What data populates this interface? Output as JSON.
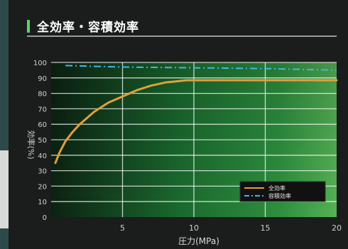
{
  "header": {
    "title": "全効率・容積効率"
  },
  "chart_data": {
    "type": "line",
    "xlabel": "圧力(MPa)",
    "ylabel": "効率(%)",
    "xlim": [
      0,
      20
    ],
    "ylim": [
      0,
      100
    ],
    "x_ticks": [
      "5",
      "10",
      "15",
      "20"
    ],
    "y_ticks": [
      "0",
      "10",
      "20",
      "30",
      "40",
      "50",
      "60",
      "70",
      "80",
      "90",
      "100"
    ],
    "grid": true,
    "legend_position": "bottom-right",
    "series": [
      {
        "name": "全効率",
        "color": "#e0a03a",
        "style": "solid",
        "x": [
          0.3,
          0.6,
          1,
          1.5,
          2,
          2.5,
          3,
          4,
          5,
          6,
          7,
          8,
          9,
          9.5,
          10,
          12,
          15,
          18,
          20
        ],
        "y": [
          35,
          42,
          49,
          55,
          60,
          64,
          68,
          74,
          78,
          82,
          85,
          87,
          88,
          88.5,
          88.5,
          88.5,
          88.5,
          88.5,
          88.5
        ]
      },
      {
        "name": "容積効率",
        "color": "#3fb8e6",
        "style": "dashdot",
        "x": [
          1,
          5,
          10,
          15,
          20
        ],
        "y": [
          98,
          97,
          96.5,
          96,
          95
        ]
      }
    ]
  }
}
